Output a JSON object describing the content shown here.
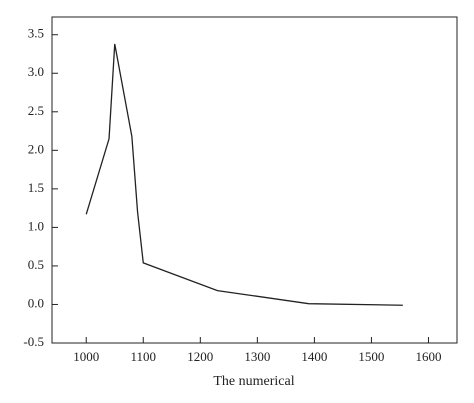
{
  "chart_data": {
    "type": "line",
    "x_label": "The numerical",
    "x": [
      1000,
      1040,
      1050,
      1080,
      1090,
      1100,
      1230,
      1390,
      1555
    ],
    "series": [
      {
        "color": "#222222",
        "values": [
          1.17,
          2.15,
          3.38,
          2.18,
          1.2,
          0.54,
          0.18,
          0.01,
          -0.01
        ]
      }
    ],
    "xlim": [
      940,
      1650
    ],
    "ylim": [
      -0.5,
      3.73
    ],
    "xticks": [
      1000,
      1100,
      1200,
      1300,
      1400,
      1500,
      1600
    ],
    "yticks": [
      -0.5,
      {
        "value": 0,
        "label": "0.0"
      },
      0.5,
      {
        "value": 1,
        "label": "1.0"
      },
      1.5,
      {
        "value": 2,
        "label": "2.0"
      },
      2.5,
      {
        "value": 3,
        "label": "3.0"
      },
      3.5
    ]
  }
}
